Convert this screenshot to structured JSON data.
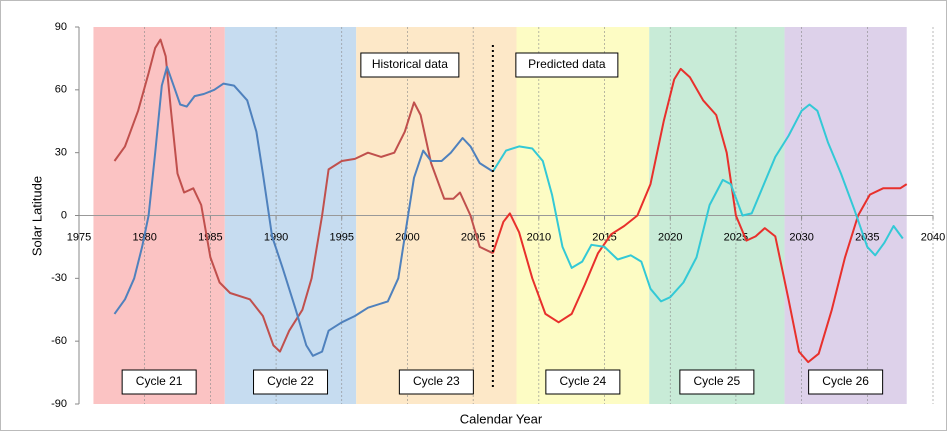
{
  "chart_data": {
    "type": "line",
    "xlabel": "Calendar Year",
    "ylabel": "Solar Latitude",
    "xlim": [
      1975,
      2040
    ],
    "xticks": [
      1975,
      1980,
      1985,
      1990,
      1995,
      2000,
      2005,
      2010,
      2015,
      2020,
      2025,
      2030,
      2035,
      2040
    ],
    "ylim": [
      -90,
      90
    ],
    "yticks": [
      -90,
      -60,
      -30,
      0,
      30,
      60,
      90
    ],
    "grid": true,
    "bands": [
      {
        "label": "Cycle 21",
        "start": 1976.1,
        "end": 1986.1,
        "color": "#fbc3c3"
      },
      {
        "label": "Cycle 22",
        "start": 1986.1,
        "end": 1996.1,
        "color": "#c6dcf0"
      },
      {
        "label": "Cycle 23",
        "start": 1996.1,
        "end": 2008.3,
        "color": "#fde8c8"
      },
      {
        "label": "Cycle 24",
        "start": 2008.3,
        "end": 2018.4,
        "color": "#fdfcc4"
      },
      {
        "label": "Cycle 25",
        "start": 2018.4,
        "end": 2028.7,
        "color": "#c8ebd7"
      },
      {
        "label": "Cycle 26",
        "start": 2028.7,
        "end": 2038.0,
        "color": "#ddd1ea"
      }
    ],
    "divider": {
      "x": 2006.5,
      "left_label": "Historical data",
      "right_label": "Predicted data"
    },
    "series": [
      {
        "color": "#c0504d",
        "x": [
          1977.7,
          1978.5,
          1979.5,
          1980.3,
          1980.8,
          1981.2,
          1981.6,
          1982,
          1982.5,
          1983,
          1983.7,
          1984.3,
          1985,
          1985.7,
          1986.5,
          1988,
          1989,
          1989.8,
          1990.3,
          1991,
          1992,
          1992.7,
          1993.5,
          1994,
          1995,
          1996,
          1997,
          1998,
          1999,
          1999.8,
          2000.5,
          2001,
          2001.8,
          2002.8,
          2003.5,
          2004,
          2004.8,
          2005.5,
          2006.5
        ],
        "values": [
          26,
          33,
          50,
          68,
          80,
          84,
          76,
          50,
          20,
          11,
          13,
          5,
          -20,
          -32,
          -37,
          -40,
          -48,
          -62,
          -65,
          -55,
          -45,
          -30,
          0,
          22,
          26,
          27,
          30,
          28,
          30,
          40,
          54,
          48,
          25,
          8,
          8,
          11,
          0,
          -15,
          -18
        ]
      },
      {
        "color": "#4f81bd",
        "x": [
          1977.7,
          1978.5,
          1979.2,
          1979.8,
          1980.3,
          1980.8,
          1981.3,
          1981.7,
          1982.2,
          1982.7,
          1983.2,
          1983.8,
          1984.5,
          1985.3,
          1986,
          1986.8,
          1987.8,
          1988.5,
          1989,
          1989.7,
          1990.5,
          1991.5,
          1992.3,
          1992.8,
          1993.5,
          1994,
          1995,
          1996,
          1997,
          1998.5,
          1999.3,
          1999.8,
          2000.5,
          2001.2,
          2001.8,
          2002.6,
          2003.3,
          2004.2,
          2004.8,
          2005.5,
          2006.5
        ],
        "values": [
          -47,
          -40,
          -30,
          -15,
          0,
          30,
          62,
          71,
          62,
          53,
          52,
          57,
          58,
          60,
          63,
          62,
          55,
          40,
          20,
          -10,
          -25,
          -45,
          -62,
          -67,
          -65,
          -55,
          -51,
          -48,
          -44,
          -41,
          -30,
          -10,
          18,
          31,
          26,
          26,
          30,
          37,
          33,
          25,
          21
        ]
      },
      {
        "color": "#e8302c",
        "x": [
          2006.5,
          2007.3,
          2007.8,
          2008.5,
          2009.5,
          2010.5,
          2011.5,
          2012.5,
          2013.5,
          2014.5,
          2015.5,
          2016.5,
          2017.5,
          2018.5,
          2019.5,
          2020.3,
          2020.8,
          2021.5,
          2022.5,
          2023.5,
          2024.3,
          2025,
          2025.8,
          2026.5,
          2027.2,
          2028,
          2029,
          2029.8,
          2030.5,
          2031.3,
          2032.3,
          2033.3,
          2034.3,
          2035.2,
          2036.2,
          2037.5,
          2038
        ],
        "values": [
          -18,
          -3,
          1,
          -8,
          -30,
          -47,
          -51,
          -47,
          -33,
          -18,
          -9,
          -5,
          0,
          15,
          45,
          65,
          70,
          66,
          55,
          48,
          30,
          0,
          -12,
          -10,
          -6,
          -10,
          -40,
          -65,
          -70,
          -66,
          -45,
          -20,
          0,
          10,
          13,
          13,
          15
        ]
      },
      {
        "color": "#33c9d6",
        "x": [
          2006.5,
          2007.5,
          2008.5,
          2009.5,
          2010.3,
          2011,
          2011.8,
          2012.5,
          2013.3,
          2014,
          2015,
          2016,
          2017,
          2017.8,
          2018.5,
          2019.3,
          2020,
          2021,
          2022,
          2023,
          2024,
          2024.6,
          2025.5,
          2026.2,
          2027,
          2028,
          2029,
          2030,
          2030.6,
          2031.2,
          2032,
          2033,
          2034,
          2035,
          2035.6,
          2036.3,
          2037,
          2037.7
        ],
        "values": [
          21,
          31,
          33,
          32,
          26,
          10,
          -15,
          -25,
          -22,
          -14,
          -15,
          -21,
          -19,
          -22,
          -35,
          -41,
          -39,
          -32,
          -20,
          5,
          17,
          15,
          0,
          1,
          13,
          28,
          38,
          50,
          53,
          50,
          35,
          20,
          3,
          -15,
          -19,
          -13,
          -5,
          -11
        ]
      }
    ]
  }
}
